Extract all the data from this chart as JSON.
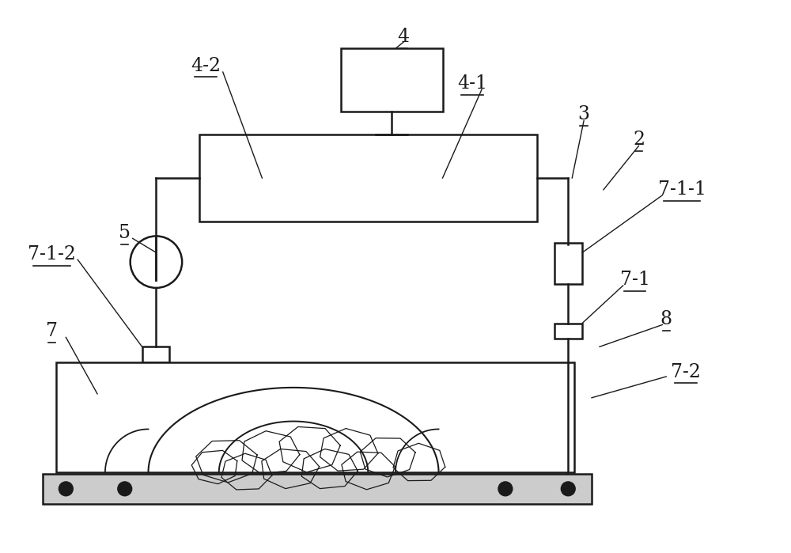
{
  "bg_color": "#ffffff",
  "line_color": "#1a1a1a",
  "fig_width": 10.0,
  "fig_height": 6.99,
  "dpi": 100,
  "lw": 1.8
}
